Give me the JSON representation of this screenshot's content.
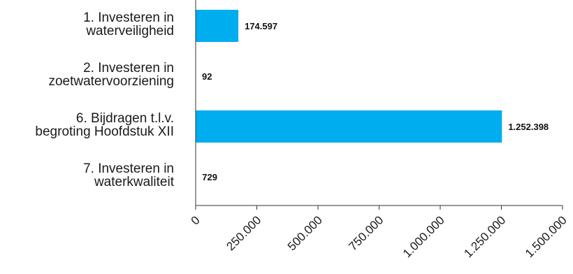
{
  "chart_data": {
    "type": "bar",
    "orientation": "horizontal",
    "categories": [
      [
        "1. Investeren in",
        "waterveiligheid"
      ],
      [
        "2. Investeren in",
        "zoetwatervoorziening"
      ],
      [
        "6. Bijdragen t.l.v.",
        "begroting Hoofdstuk XII"
      ],
      [
        "7. Investeren in",
        "waterkwaliteit"
      ]
    ],
    "values": [
      174597,
      92,
      1252398,
      729
    ],
    "value_labels": [
      "174.597",
      "92",
      "1.252.398",
      "729"
    ],
    "xlim": [
      0,
      1500000
    ],
    "xticks": [
      0,
      250000,
      500000,
      750000,
      1000000,
      1250000,
      1500000
    ],
    "xtick_labels": [
      "0",
      "250.000",
      "500.000",
      "750.000",
      "1.000.000",
      "1.250.000",
      "1.500.000"
    ],
    "title": "",
    "xlabel": "",
    "ylabel": "",
    "grid": false,
    "legend": false,
    "bar_color": "#00adef"
  }
}
